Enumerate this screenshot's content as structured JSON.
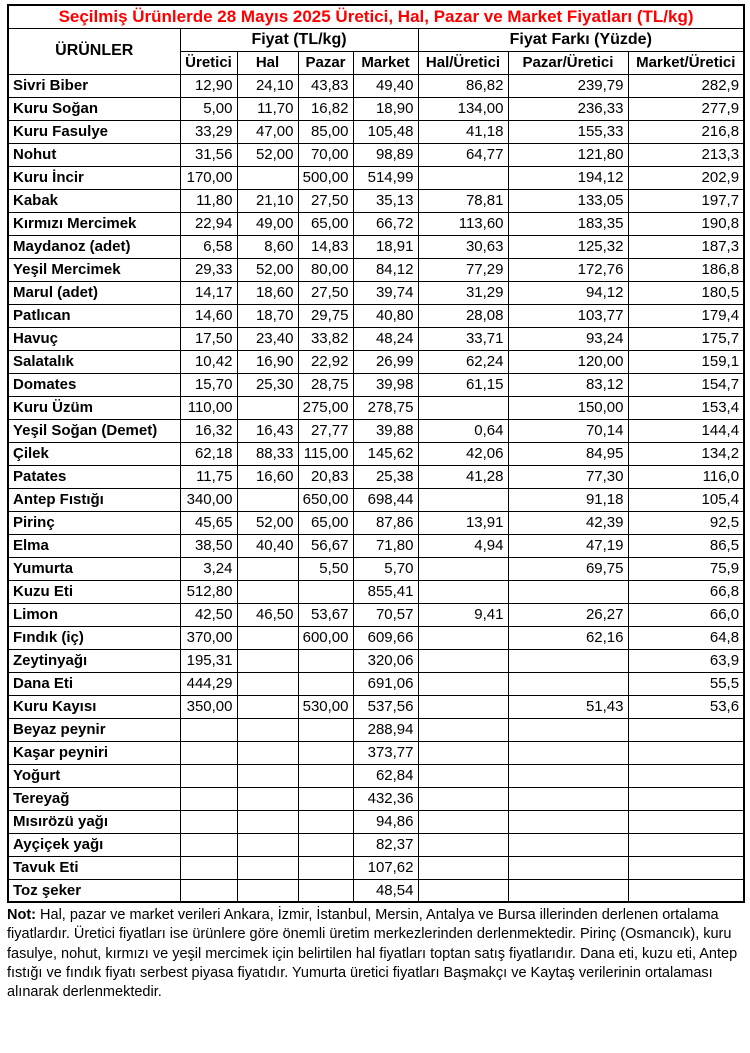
{
  "title": "Seçilmiş Ürünlerde 28 Mayıs 2025 Üretici, Hal, Pazar ve Market Fiyatları (TL/kg)",
  "colors": {
    "title_text": "#ff0000",
    "body_text": "#000000",
    "border": "#000000",
    "background": "#ffffff"
  },
  "table": {
    "products_header": "ÜRÜNLER",
    "group_headers": {
      "fiyat": "Fiyat (TL/kg)",
      "fark": "Fiyat Farkı (Yüzde)"
    },
    "sub_headers": [
      "Üretici",
      "Hal",
      "Pazar",
      "Market",
      "Hal/Üretici",
      "Pazar/Üretici",
      "Market/Üretici"
    ],
    "rows": [
      {
        "name": "Sivri Biber",
        "values": [
          "12,90",
          "24,10",
          "43,83",
          "49,40",
          "86,82",
          "239,79",
          "282,9"
        ]
      },
      {
        "name": "Kuru Soğan",
        "values": [
          "5,00",
          "11,70",
          "16,82",
          "18,90",
          "134,00",
          "236,33",
          "277,9"
        ]
      },
      {
        "name": "Kuru Fasulye",
        "values": [
          "33,29",
          "47,00",
          "85,00",
          "105,48",
          "41,18",
          "155,33",
          "216,8"
        ]
      },
      {
        "name": "Nohut",
        "values": [
          "31,56",
          "52,00",
          "70,00",
          "98,89",
          "64,77",
          "121,80",
          "213,3"
        ]
      },
      {
        "name": "Kuru İncir",
        "values": [
          "170,00",
          "",
          "500,00",
          "514,99",
          "",
          "194,12",
          "202,9"
        ]
      },
      {
        "name": "Kabak",
        "values": [
          "11,80",
          "21,10",
          "27,50",
          "35,13",
          "78,81",
          "133,05",
          "197,7"
        ]
      },
      {
        "name": "Kırmızı Mercimek",
        "values": [
          "22,94",
          "49,00",
          "65,00",
          "66,72",
          "113,60",
          "183,35",
          "190,8"
        ]
      },
      {
        "name": "Maydanoz (adet)",
        "values": [
          "6,58",
          "8,60",
          "14,83",
          "18,91",
          "30,63",
          "125,32",
          "187,3"
        ]
      },
      {
        "name": "Yeşil Mercimek",
        "values": [
          "29,33",
          "52,00",
          "80,00",
          "84,12",
          "77,29",
          "172,76",
          "186,8"
        ]
      },
      {
        "name": "Marul (adet)",
        "values": [
          "14,17",
          "18,60",
          "27,50",
          "39,74",
          "31,29",
          "94,12",
          "180,5"
        ]
      },
      {
        "name": "Patlıcan",
        "values": [
          "14,60",
          "18,70",
          "29,75",
          "40,80",
          "28,08",
          "103,77",
          "179,4"
        ]
      },
      {
        "name": "Havuç",
        "values": [
          "17,50",
          "23,40",
          "33,82",
          "48,24",
          "33,71",
          "93,24",
          "175,7"
        ]
      },
      {
        "name": "Salatalık",
        "values": [
          "10,42",
          "16,90",
          "22,92",
          "26,99",
          "62,24",
          "120,00",
          "159,1"
        ]
      },
      {
        "name": "Domates",
        "values": [
          "15,70",
          "25,30",
          "28,75",
          "39,98",
          "61,15",
          "83,12",
          "154,7"
        ]
      },
      {
        "name": "Kuru Üzüm",
        "values": [
          "110,00",
          "",
          "275,00",
          "278,75",
          "",
          "150,00",
          "153,4"
        ]
      },
      {
        "name": "Yeşil Soğan (Demet)",
        "values": [
          "16,32",
          "16,43",
          "27,77",
          "39,88",
          "0,64",
          "70,14",
          "144,4"
        ]
      },
      {
        "name": "Çilek",
        "values": [
          "62,18",
          "88,33",
          "115,00",
          "145,62",
          "42,06",
          "84,95",
          "134,2"
        ]
      },
      {
        "name": "Patates",
        "values": [
          "11,75",
          "16,60",
          "20,83",
          "25,38",
          "41,28",
          "77,30",
          "116,0"
        ]
      },
      {
        "name": "Antep Fıstığı",
        "values": [
          "340,00",
          "",
          "650,00",
          "698,44",
          "",
          "91,18",
          "105,4"
        ]
      },
      {
        "name": "Pirinç",
        "values": [
          "45,65",
          "52,00",
          "65,00",
          "87,86",
          "13,91",
          "42,39",
          "92,5"
        ]
      },
      {
        "name": "Elma",
        "values": [
          "38,50",
          "40,40",
          "56,67",
          "71,80",
          "4,94",
          "47,19",
          "86,5"
        ]
      },
      {
        "name": "Yumurta",
        "values": [
          "3,24",
          "",
          "5,50",
          "5,70",
          "",
          "69,75",
          "75,9"
        ]
      },
      {
        "name": "Kuzu Eti",
        "values": [
          "512,80",
          "",
          "",
          "855,41",
          "",
          "",
          "66,8"
        ]
      },
      {
        "name": "Limon",
        "values": [
          "42,50",
          "46,50",
          "53,67",
          "70,57",
          "9,41",
          "26,27",
          "66,0"
        ]
      },
      {
        "name": "Fındık (iç)",
        "values": [
          "370,00",
          "",
          "600,00",
          "609,66",
          "",
          "62,16",
          "64,8"
        ]
      },
      {
        "name": "Zeytinyağı",
        "values": [
          "195,31",
          "",
          "",
          "320,06",
          "",
          "",
          "63,9"
        ]
      },
      {
        "name": "Dana Eti",
        "values": [
          "444,29",
          "",
          "",
          "691,06",
          "",
          "",
          "55,5"
        ]
      },
      {
        "name": "Kuru Kayısı",
        "values": [
          "350,00",
          "",
          "530,00",
          "537,56",
          "",
          "51,43",
          "53,6"
        ]
      },
      {
        "name": "Beyaz peynir",
        "values": [
          "",
          "",
          "",
          "288,94",
          "",
          "",
          ""
        ]
      },
      {
        "name": "Kaşar peyniri",
        "values": [
          "",
          "",
          "",
          "373,77",
          "",
          "",
          ""
        ]
      },
      {
        "name": "Yoğurt",
        "values": [
          "",
          "",
          "",
          "62,84",
          "",
          "",
          ""
        ]
      },
      {
        "name": "Tereyağ",
        "values": [
          "",
          "",
          "",
          "432,36",
          "",
          "",
          ""
        ]
      },
      {
        "name": "Mısırözü yağı",
        "values": [
          "",
          "",
          "",
          "94,86",
          "",
          "",
          ""
        ]
      },
      {
        "name": "Ayçiçek  yağı",
        "values": [
          "",
          "",
          "",
          "82,37",
          "",
          "",
          ""
        ]
      },
      {
        "name": "Tavuk Eti",
        "values": [
          "",
          "",
          "",
          "107,62",
          "",
          "",
          ""
        ]
      },
      {
        "name": "Toz şeker",
        "values": [
          "",
          "",
          "",
          "48,54",
          "",
          "",
          ""
        ]
      }
    ]
  },
  "note": {
    "label": "Not:",
    "text": " Hal, pazar ve market verileri Ankara, İzmir, İstanbul, Mersin, Antalya ve Bursa illerinden derlenen ortalama fiyatlardır. Üretici fiyatları ise ürünlere göre önemli üretim merkezlerinden derlenmektedir. Pirinç (Osmancık), kuru fasulye, nohut, kırmızı ve yeşil mercimek için belirtilen hal fiyatları toptan satış fiyatlarıdır. Dana eti, kuzu eti, Antep fıstığı ve fındık fiyatı serbest piyasa fiyatıdır. Yumurta üretici fiyatları Başmakçı ve Kaytaş verilerinin ortalaması alınarak derlenmektedir."
  }
}
